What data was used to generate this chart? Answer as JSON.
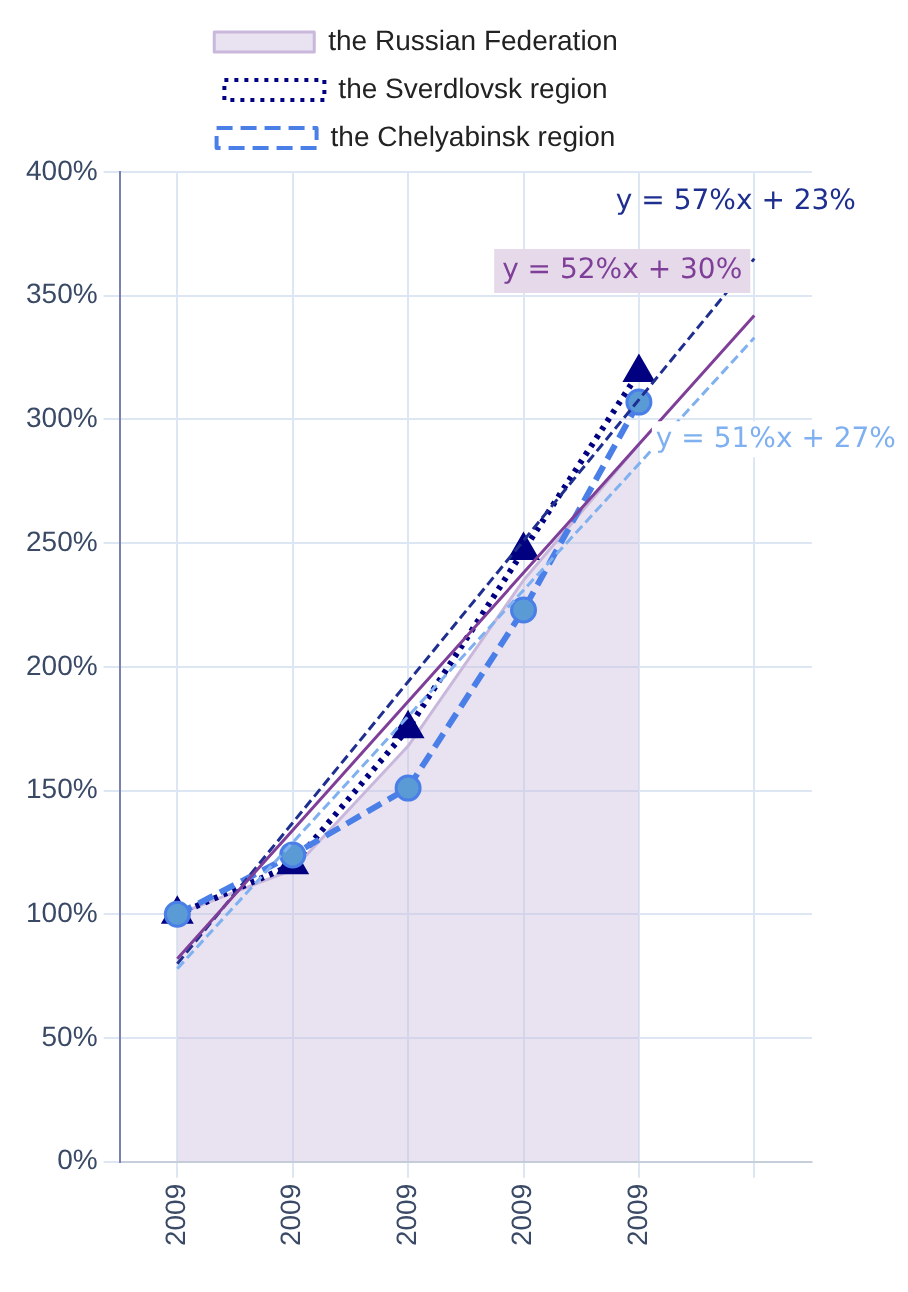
{
  "chart_data": {
    "type": "line",
    "categories": [
      "2009",
      "2009",
      "2009",
      "2009",
      "2009",
      null
    ],
    "series": [
      {
        "name": "the Russian Federation",
        "type": "area",
        "color": "#c9b8dc",
        "values": [
          100,
          118,
          168,
          235,
          290,
          null
        ],
        "marker": "none",
        "line_style": "solid"
      },
      {
        "name": "the Sverdlovsk region",
        "color": "#000080",
        "values": [
          100,
          120,
          175,
          247,
          319,
          null
        ],
        "marker": "triangle",
        "line_style": "dotted"
      },
      {
        "name": "the Chelyabinsk region",
        "color": "#4a7fe8",
        "values": [
          100,
          124,
          151,
          223,
          307,
          null
        ],
        "marker": "circle",
        "line_style": "dashed"
      },
      {
        "color": "#1f2f8f",
        "values": [
          80,
          137,
          194,
          251,
          308,
          365
        ],
        "marker": "none",
        "line_style": "dashed"
      },
      {
        "color": "#7f3f98",
        "values": [
          82,
          134,
          186,
          238,
          290,
          342
        ],
        "marker": "none",
        "line_style": "solid"
      },
      {
        "color": "#7fb0f0",
        "values": [
          78,
          129,
          180,
          231,
          282,
          333
        ],
        "marker": "none",
        "line_style": "dashed"
      }
    ],
    "ylim": [
      0,
      400
    ],
    "yticks": [
      {
        "value": 0,
        "label": "0%"
      },
      {
        "value": 50,
        "label": "50%"
      },
      {
        "value": 100,
        "label": "100%"
      },
      {
        "value": 150,
        "label": "150%"
      },
      {
        "value": 200,
        "label": "200%"
      },
      {
        "value": 250,
        "label": "250%"
      },
      {
        "value": 300,
        "label": "300%"
      },
      {
        "value": 350,
        "label": "350%"
      },
      {
        "value": 400,
        "label": "400%"
      }
    ],
    "annotations": [
      "y = 57%x + 23%",
      "y = 52%x + 30%",
      "y = 51%x + 27%"
    ],
    "grid": true,
    "legend": "top"
  }
}
